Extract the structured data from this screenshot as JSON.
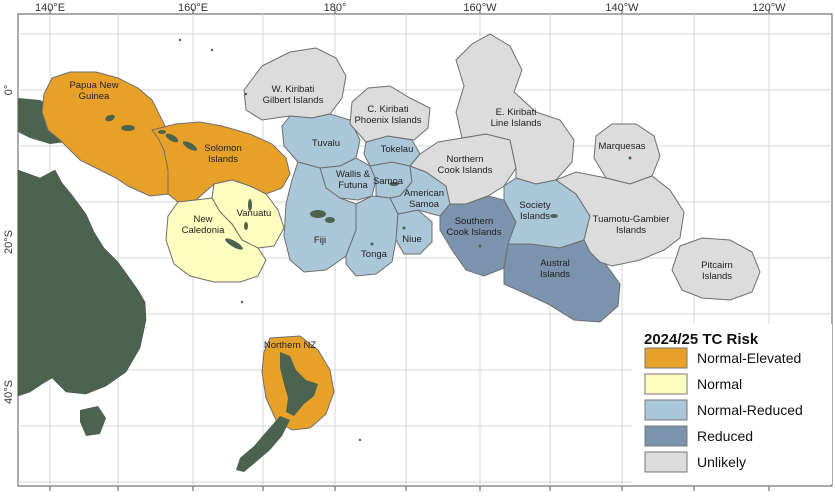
{
  "axis_labels": {
    "top": [
      "140°E",
      "160°E",
      "180°",
      "160°W",
      "140°W",
      "120°W"
    ],
    "left": [
      "0°",
      "20°S",
      "40°S"
    ]
  },
  "regions": [
    {
      "name": "Papua New\nGuinea",
      "risk": "Normal-Elevated"
    },
    {
      "name": "Solomon\nIslands",
      "risk": "Normal-Elevated"
    },
    {
      "name": "Vanuatu",
      "risk": "Normal"
    },
    {
      "name": "New\nCaledonia",
      "risk": "Normal"
    },
    {
      "name": "Northern NZ",
      "risk": "Normal-Elevated"
    },
    {
      "name": "W. Kiribati\nGilbert Islands",
      "risk": "Unlikely"
    },
    {
      "name": "Tuvalu",
      "risk": "Normal-Reduced"
    },
    {
      "name": "Wallis &\nFutuna",
      "risk": "Normal-Reduced"
    },
    {
      "name": "Fiji",
      "risk": "Normal-Reduced"
    },
    {
      "name": "Tonga",
      "risk": "Normal-Reduced"
    },
    {
      "name": "C. Kiribati\nPhoenix Islands",
      "risk": "Unlikely"
    },
    {
      "name": "Tokelau",
      "risk": "Normal-Reduced"
    },
    {
      "name": "Samoa",
      "risk": "Normal-Reduced"
    },
    {
      "name": "American\nSamoa",
      "risk": "Normal-Reduced"
    },
    {
      "name": "Niue",
      "risk": "Normal-Reduced"
    },
    {
      "name": "Northern\nCook Islands",
      "risk": "Unlikely"
    },
    {
      "name": "Southern\nCook Islands",
      "risk": "Reduced"
    },
    {
      "name": "E. Kiribati\nLine Islands",
      "risk": "Unlikely"
    },
    {
      "name": "Society\nIslands",
      "risk": "Normal-Reduced"
    },
    {
      "name": "Austral\nIslands",
      "risk": "Reduced"
    },
    {
      "name": "Marquesas",
      "risk": "Unlikely"
    },
    {
      "name": "Tuamotu-Gambier\nIslands",
      "risk": "Unlikely"
    },
    {
      "name": "Pitcairn\nIslands",
      "risk": "Unlikely"
    }
  ],
  "legend": {
    "title": "2024/25 TC Risk",
    "items": [
      {
        "label": "Normal-Elevated",
        "color": "#e8a128"
      },
      {
        "label": "Normal",
        "color": "#fdfdc0"
      },
      {
        "label": "Normal-Reduced",
        "color": "#aac6d9"
      },
      {
        "label": "Reduced",
        "color": "#7b93ad"
      },
      {
        "label": "Unlikely",
        "color": "#dcdcdc"
      }
    ]
  },
  "colors": {
    "land": "#4c6350",
    "grid": "#d7d7d7",
    "outline": "#6e6e6e"
  }
}
